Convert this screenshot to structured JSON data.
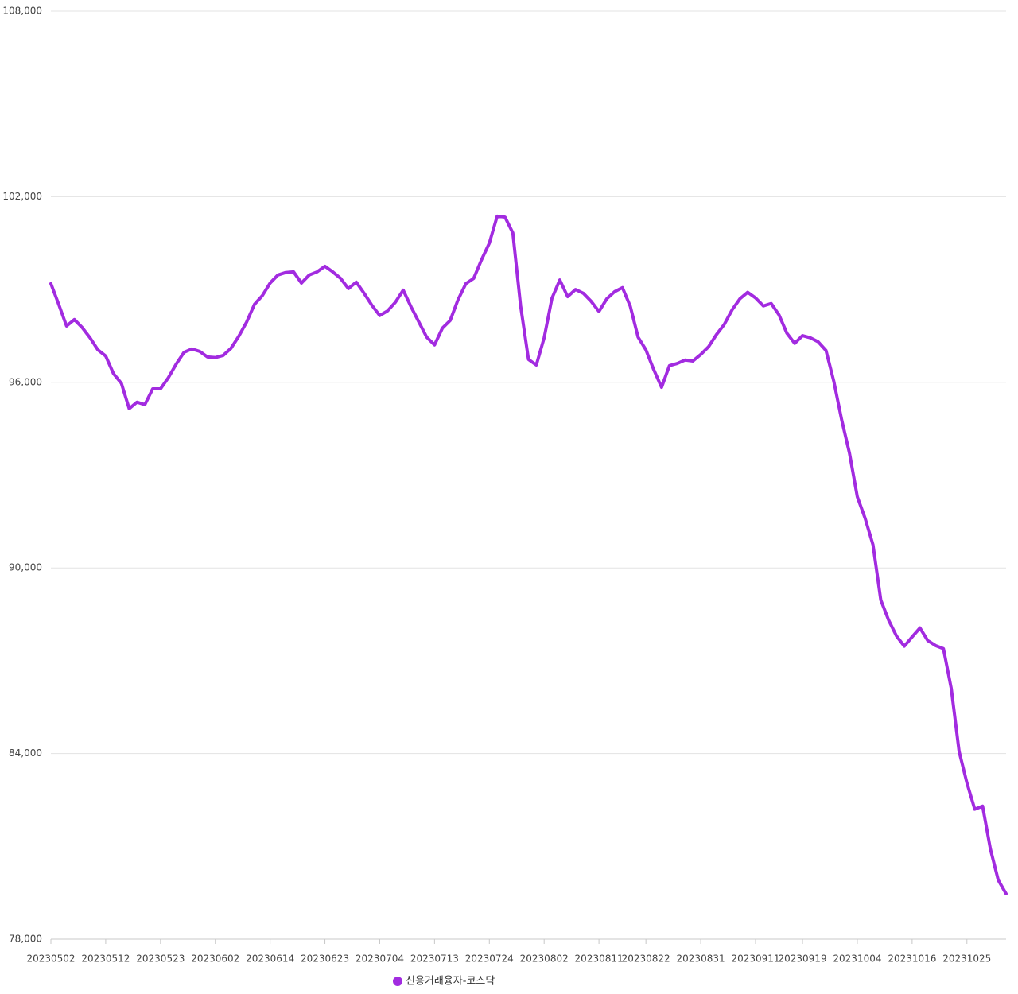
{
  "chart_data": {
    "type": "line",
    "categories": [
      "20230502",
      null,
      null,
      null,
      null,
      null,
      null,
      "20230512",
      null,
      null,
      null,
      null,
      null,
      null,
      "20230523",
      null,
      null,
      null,
      null,
      null,
      null,
      "20230602",
      null,
      null,
      null,
      null,
      null,
      null,
      "20230614",
      null,
      null,
      null,
      null,
      null,
      null,
      "20230623",
      null,
      null,
      null,
      null,
      null,
      null,
      "20230704",
      null,
      null,
      null,
      null,
      null,
      null,
      "20230713",
      null,
      null,
      null,
      null,
      null,
      null,
      "20230724",
      null,
      null,
      null,
      null,
      null,
      null,
      "20230802",
      null,
      null,
      null,
      null,
      null,
      null,
      "20230811",
      null,
      null,
      null,
      null,
      null,
      "20230822",
      null,
      null,
      null,
      null,
      null,
      null,
      "20230831",
      null,
      null,
      null,
      null,
      null,
      null,
      "20230911",
      null,
      null,
      null,
      null,
      null,
      "20230919",
      null,
      null,
      null,
      null,
      null,
      null,
      "20231004",
      null,
      null,
      null,
      null,
      null,
      null,
      "20231016",
      null,
      null,
      null,
      null,
      null,
      null,
      "20231025",
      null,
      null,
      null,
      null,
      null
    ],
    "series": [
      {
        "name": "신용거래융자-코스닥",
        "color": "#a22be0",
        "values": [
          99190,
          98520,
          97820,
          98030,
          97770,
          97440,
          97050,
          96850,
          96280,
          95970,
          95150,
          95360,
          95280,
          95790,
          95790,
          96150,
          96590,
          96970,
          97080,
          97000,
          96820,
          96800,
          96870,
          97100,
          97490,
          97950,
          98520,
          98800,
          99210,
          99470,
          99550,
          99570,
          99210,
          99470,
          99570,
          99750,
          99570,
          99360,
          99030,
          99240,
          98880,
          98490,
          98160,
          98310,
          98590,
          98980,
          98440,
          97950,
          97460,
          97210,
          97750,
          98000,
          98670,
          99190,
          99360,
          99960,
          100500,
          101370,
          101340,
          100830,
          98460,
          96740,
          96560,
          97440,
          98720,
          99310,
          98770,
          99000,
          98880,
          98620,
          98290,
          98700,
          98930,
          99060,
          98460,
          97460,
          97050,
          96410,
          95840,
          96540,
          96610,
          96720,
          96690,
          96900,
          97150,
          97540,
          97870,
          98340,
          98700,
          98910,
          98730,
          98470,
          98550,
          98180,
          97590,
          97260,
          97510,
          97440,
          97310,
          97030,
          96030,
          94790,
          93710,
          92300,
          91600,
          90750,
          88960,
          88310,
          87800,
          87470,
          87770,
          88060,
          87650,
          87490,
          87390,
          86100,
          84070,
          83050,
          82200,
          82300,
          80910,
          79910,
          79470
        ]
      }
    ],
    "ylim": [
      78000,
      108000
    ],
    "yticks": [
      {
        "value": 78000,
        "label": "78,000"
      },
      {
        "value": 84000,
        "label": "84,000"
      },
      {
        "value": 90000,
        "label": "90,000"
      },
      {
        "value": 96000,
        "label": "96,000"
      },
      {
        "value": 102000,
        "label": "102,000"
      },
      {
        "value": 108000,
        "label": "108,000"
      }
    ],
    "grid": true,
    "legend": "bottom"
  }
}
